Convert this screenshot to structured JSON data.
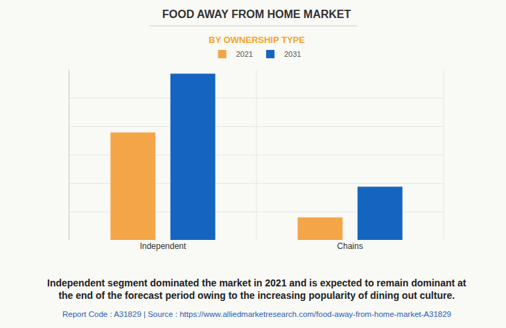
{
  "chart_data": {
    "type": "bar",
    "title": "FOOD AWAY FROM HOME MARKET",
    "subtitle": "BY OWNERSHIP TYPE",
    "categories": [
      "Independent",
      "Chains"
    ],
    "series": [
      {
        "name": "2021",
        "color": "#f4a548",
        "values": [
          3.78,
          0.79
        ]
      },
      {
        "name": "2031",
        "color": "#1565c0",
        "values": [
          5.85,
          1.87
        ]
      }
    ],
    "ylim": [
      0,
      6
    ],
    "yticks": [
      0,
      1,
      2,
      3,
      4,
      5,
      6
    ],
    "grid": true,
    "legend": "top",
    "tick_labels": "x",
    "caption": [
      "Independent segment dominated the market in 2021 and is expected to remain dominant at",
      "the end of the forecast period owing to the increasing popularity of dining out culture."
    ],
    "source": "Report Code : A31829 | Source : https://www.alliedmarketresearch.com/food-away-from-home-market-A31829"
  }
}
